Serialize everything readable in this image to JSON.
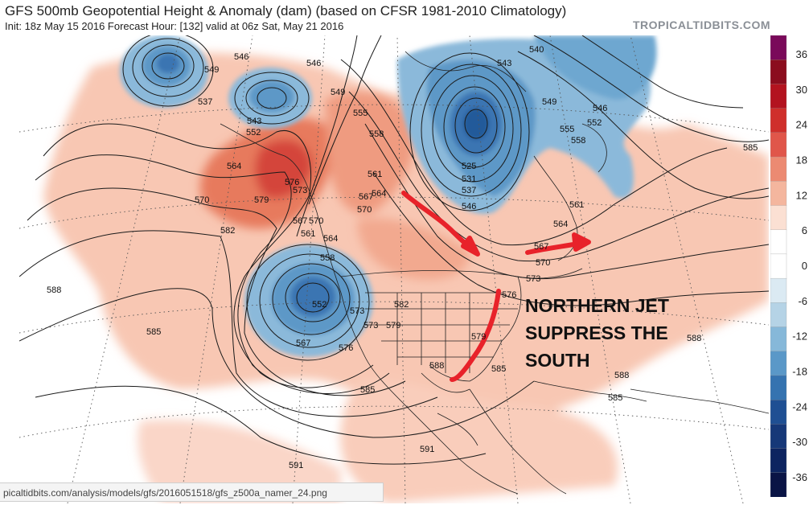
{
  "header": {
    "title": "GFS 500mb Geopotential Height & Anomaly (dam) (based on CFSR 1981-2010 Climatology)",
    "subtitle": "Init: 18z May 15 2016   Forecast Hour: [132]   valid at 06z Sat, May 21 2016",
    "brand": "TROPICALTIDBITS.COM"
  },
  "annotation": {
    "lines": [
      "NORTHERN JET",
      "SUPPRESS THE",
      "SOUTH"
    ],
    "arrow_color": "#e8222a"
  },
  "colorbar": {
    "ticks": [
      "36",
      "30",
      "24",
      "18",
      "12",
      "6",
      "0",
      "-6",
      "-12",
      "-18",
      "-24",
      "-30",
      "-36"
    ],
    "colors": [
      "#7a0a5a",
      "#8b0d1e",
      "#b3131f",
      "#cf2f2b",
      "#e0564a",
      "#ec8a72",
      "#f4b69e",
      "#fbe0d3",
      "#ffffff",
      "#ffffff",
      "#dbeaf3",
      "#b5d3e6",
      "#86b8d9",
      "#5a98c8",
      "#3573b0",
      "#1f4f93",
      "#163878",
      "#0d2460",
      "#0a1445"
    ]
  },
  "height_labels": [
    "549",
    "546",
    "546",
    "549",
    "537",
    "543",
    "552",
    "564",
    "576",
    "570",
    "579",
    "573",
    "567",
    "570",
    "582",
    "561",
    "564",
    "558",
    "555",
    "558",
    "561",
    "564",
    "567",
    "570",
    "552",
    "582",
    "573",
    "573",
    "579",
    "567",
    "576",
    "585",
    "588",
    "585",
    "588",
    "591",
    "591",
    "540",
    "543",
    "549",
    "546",
    "552",
    "555",
    "558",
    "525",
    "531",
    "537",
    "546",
    "561",
    "564",
    "567",
    "570",
    "573",
    "576",
    "579",
    "585",
    "585",
    "588",
    "588",
    "585"
  ],
  "url_bar": "picaltidbits.com/analysis/models/gfs/2016051518/gfs_z500a_namer_24.png"
}
